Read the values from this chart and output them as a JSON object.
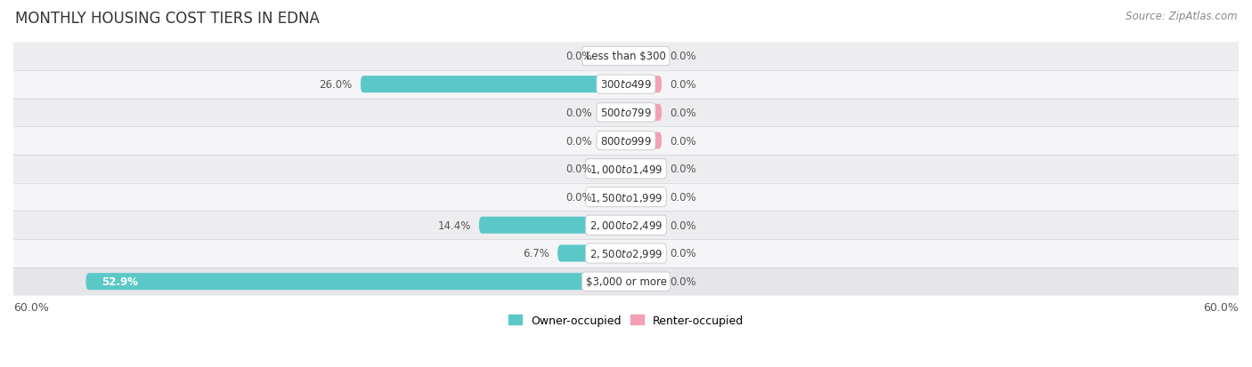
{
  "title": "MONTHLY HOUSING COST TIERS IN EDNA",
  "source": "Source: ZipAtlas.com",
  "categories": [
    "Less than $300",
    "$300 to $499",
    "$500 to $799",
    "$800 to $999",
    "$1,000 to $1,499",
    "$1,500 to $1,999",
    "$2,000 to $2,499",
    "$2,500 to $2,999",
    "$3,000 or more"
  ],
  "owner_values": [
    0.0,
    26.0,
    0.0,
    0.0,
    0.0,
    0.0,
    14.4,
    6.7,
    52.9
  ],
  "renter_values": [
    0.0,
    0.0,
    0.0,
    0.0,
    0.0,
    0.0,
    0.0,
    0.0,
    0.0
  ],
  "owner_stub": 2.5,
  "renter_stub": 3.5,
  "owner_color": "#5bc8c8",
  "renter_color": "#f4a0b4",
  "owner_label": "Owner-occupied",
  "renter_label": "Renter-occupied",
  "axis_max": 60.0,
  "axis_label_left": "60.0%",
  "axis_label_right": "60.0%",
  "row_colors": [
    "#f0f0f2",
    "#f8f8fa",
    "#f0f0f2",
    "#f8f8fa",
    "#f0f0f2",
    "#f8f8fa",
    "#f0f0f2",
    "#f8f8fa",
    "#e8e8ec"
  ],
  "title_fontsize": 12,
  "source_fontsize": 8.5,
  "label_fontsize": 9,
  "category_fontsize": 8.5,
  "value_fontsize": 8.5
}
